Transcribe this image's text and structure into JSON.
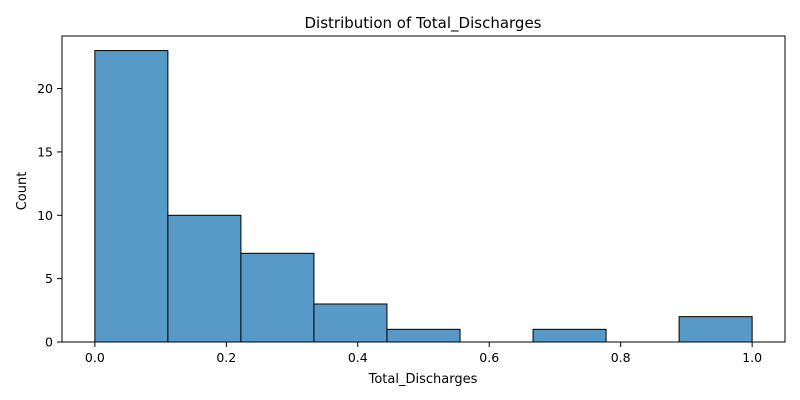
{
  "chart_data": {
    "type": "bar",
    "title": "Distribution of Total_Discharges",
    "xlabel": "Total_Discharges",
    "ylabel": "Count",
    "bin_edges": [
      0.0,
      0.1111,
      0.2222,
      0.3333,
      0.4444,
      0.5556,
      0.6667,
      0.7778,
      0.8889,
      1.0
    ],
    "values": [
      23,
      10,
      7,
      3,
      1,
      0,
      1,
      0,
      2
    ],
    "xlim": [
      -0.05,
      1.05
    ],
    "ylim": [
      0,
      24.15
    ],
    "x_ticks": [
      0.0,
      0.2,
      0.4,
      0.6,
      0.8,
      1.0
    ],
    "x_tick_labels": [
      "0.0",
      "0.2",
      "0.4",
      "0.6",
      "0.8",
      "1.0"
    ],
    "y_ticks": [
      0,
      5,
      10,
      15,
      20
    ],
    "y_tick_labels": [
      "0",
      "5",
      "10",
      "15",
      "20"
    ],
    "bar_color": "#5799c7",
    "bar_edge_color": "#000000",
    "grid": false,
    "legend": "none"
  }
}
